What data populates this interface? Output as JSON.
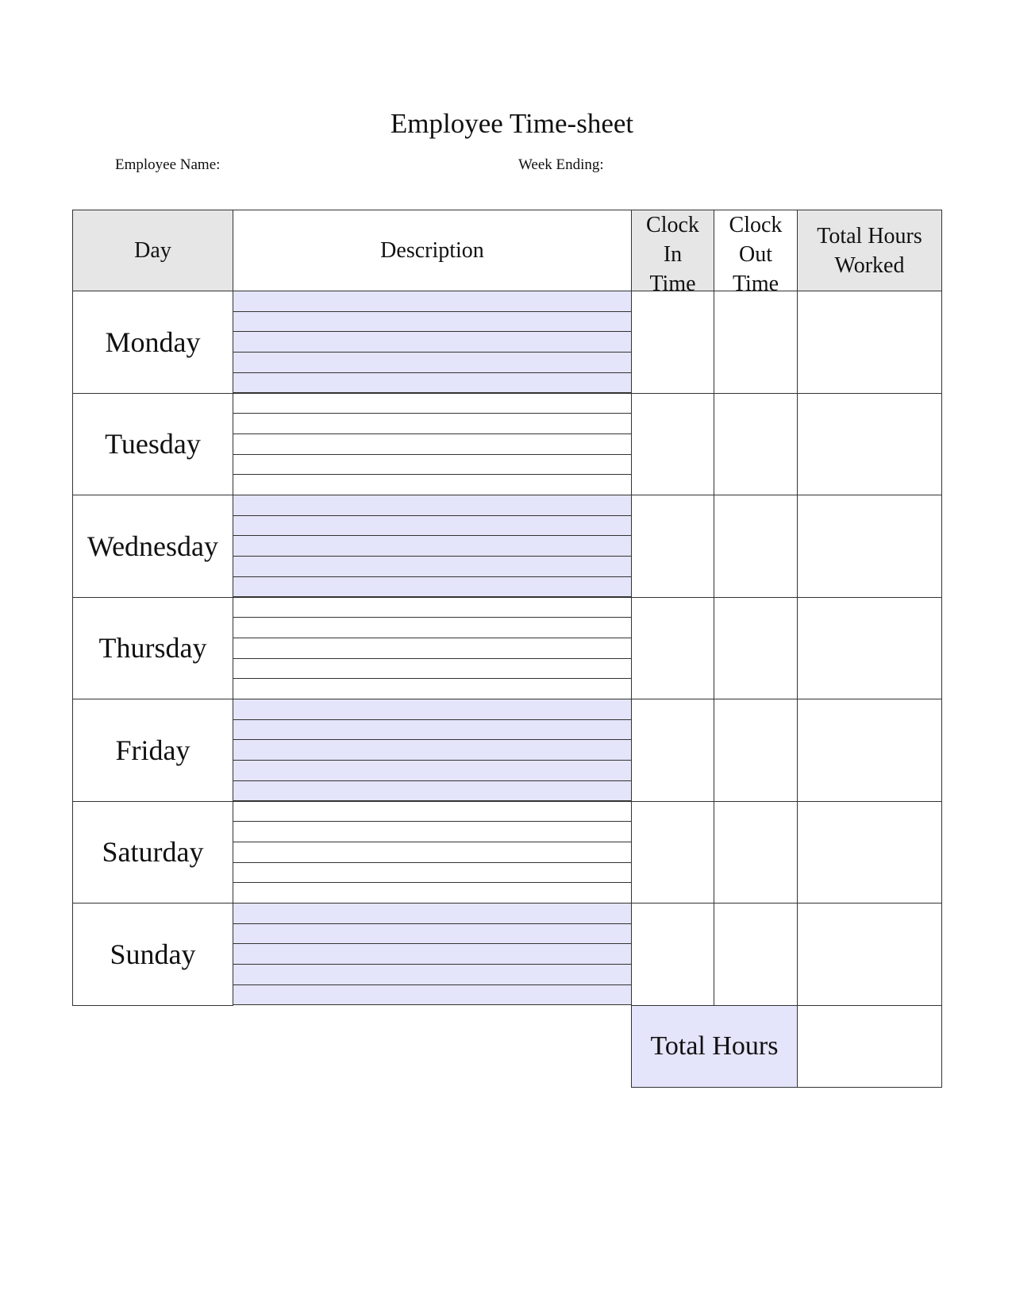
{
  "title": "Employee Time-sheet",
  "employee_name_label": "Employee Name:",
  "week_ending_label": "Week Ending:",
  "headers": {
    "day": "Day",
    "description": "Description",
    "clock_in": "Clock In Time",
    "clock_out": "Clock Out Time",
    "total": "Total Hours Worked"
  },
  "days": [
    "Monday",
    "Tuesday",
    "Wednesday",
    "Thursday",
    "Friday",
    "Saturday",
    "Sunday"
  ],
  "total_label": "Total Hours",
  "colors": {
    "header_bg": "#e6e6e6",
    "shade": "#e4e4fa",
    "border": "#333333"
  }
}
